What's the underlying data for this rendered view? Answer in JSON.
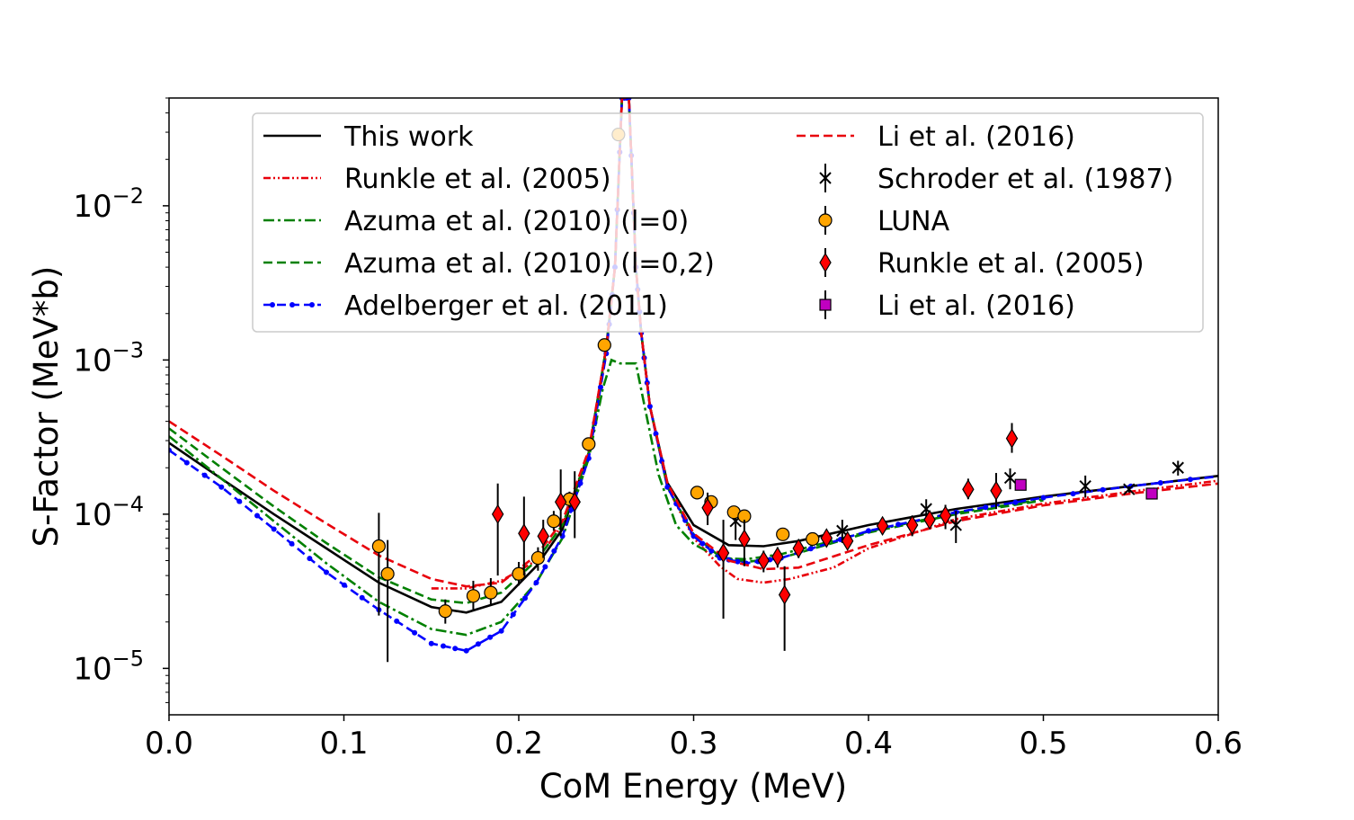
{
  "chart_data": {
    "type": "line",
    "xlabel": "CoM Energy (MeV)",
    "ylabel": "S-Factor (MeV*b)",
    "xlim": [
      0.0,
      0.6
    ],
    "ylim": [
      5e-06,
      0.05
    ],
    "yscale": "log",
    "grid": false,
    "legend_position": "top",
    "x_ticks": [
      {
        "value": 0.0,
        "label": "0.0"
      },
      {
        "value": 0.1,
        "label": "0.1"
      },
      {
        "value": 0.2,
        "label": "0.2"
      },
      {
        "value": 0.3,
        "label": "0.3"
      },
      {
        "value": 0.4,
        "label": "0.4"
      },
      {
        "value": 0.5,
        "label": "0.5"
      },
      {
        "value": 0.6,
        "label": "0.6"
      }
    ],
    "y_ticks": [
      {
        "value": 1e-05,
        "base": "10",
        "exp": "−5"
      },
      {
        "value": 0.0001,
        "base": "10",
        "exp": "−4"
      },
      {
        "value": 0.001,
        "base": "10",
        "exp": "−3"
      },
      {
        "value": 0.01,
        "base": "10",
        "exp": "−2"
      }
    ],
    "curves": [
      {
        "name": "This work",
        "color": "#000000",
        "style": "solid",
        "marker": "none",
        "x": [
          0.0,
          0.03,
          0.06,
          0.09,
          0.12,
          0.15,
          0.17,
          0.19,
          0.21,
          0.225,
          0.24,
          0.25,
          0.255,
          0.259,
          0.263,
          0.267,
          0.27,
          0.275,
          0.285,
          0.3,
          0.32,
          0.34,
          0.36,
          0.4,
          0.45,
          0.5,
          0.55,
          0.6
        ],
        "y": [
          0.00029,
          0.00017,
          0.0001,
          6e-05,
          3.6e-05,
          2.5e-05,
          2.3e-05,
          2.7e-05,
          4.6e-05,
          8e-05,
          0.00025,
          0.0012,
          0.004,
          0.05,
          0.05,
          0.004,
          0.0015,
          0.0005,
          0.00016,
          8.5e-05,
          6.3e-05,
          6.2e-05,
          6.7e-05,
          8.5e-05,
          0.000108,
          0.00013,
          0.000152,
          0.000177
        ]
      },
      {
        "name": "Runkle et al. (2005)",
        "color": "#e8000b",
        "style": "dashdotdot",
        "marker": "none",
        "x": [
          0.15,
          0.17,
          0.19,
          0.21,
          0.225,
          0.24,
          0.25,
          0.255,
          0.259,
          0.263,
          0.267,
          0.27,
          0.275,
          0.285,
          0.3,
          0.315,
          0.325,
          0.34,
          0.355,
          0.38,
          0.4,
          0.45,
          0.5,
          0.55,
          0.6
        ],
        "y": [
          3.3e-05,
          3.3e-05,
          3.7e-05,
          5e-05,
          8.5e-05,
          0.00025,
          0.0011,
          0.004,
          0.05,
          0.05,
          0.004,
          0.0015,
          0.0005,
          0.00015,
          7e-05,
          4.6e-05,
          3.8e-05,
          3.6e-05,
          3.8e-05,
          4.5e-05,
          6e-05,
          9.3e-05,
          0.000117,
          0.00014,
          0.000165
        ]
      },
      {
        "name": "Azuma et al. (2010) (l=0)",
        "color": "#008000",
        "style": "dashdot",
        "marker": "none",
        "x": [
          0.0,
          0.03,
          0.06,
          0.09,
          0.12,
          0.15,
          0.17,
          0.19,
          0.21,
          0.225,
          0.24,
          0.248,
          0.253,
          0.258,
          0.262,
          0.267,
          0.272,
          0.28,
          0.29,
          0.3,
          0.315,
          0.33,
          0.35,
          0.4,
          0.45,
          0.5
        ],
        "y": [
          0.00032,
          0.00017,
          9e-05,
          4.8e-05,
          2.7e-05,
          1.8e-05,
          1.65e-05,
          2e-05,
          3.6e-05,
          7e-05,
          0.00023,
          0.00065,
          0.001,
          0.00095,
          0.00095,
          0.00095,
          0.0005,
          0.00018,
          8.5e-05,
          6.4e-05,
          5.2e-05,
          5.1e-05,
          5.5e-05,
          7.7e-05,
          0.000102,
          0.000125
        ]
      },
      {
        "name": "Azuma et al. (2010) (l=0,2)",
        "color": "#008000",
        "style": "dashed",
        "marker": "none",
        "x": [
          0.0,
          0.03,
          0.06,
          0.09,
          0.12,
          0.15,
          0.17,
          0.19,
          0.21,
          0.225,
          0.24,
          0.25,
          0.255,
          0.259,
          0.263,
          0.267,
          0.27,
          0.275,
          0.285,
          0.3,
          0.315,
          0.33,
          0.35,
          0.4,
          0.45,
          0.5
        ],
        "y": [
          0.00036,
          0.0002,
          0.000112,
          6.5e-05,
          3.9e-05,
          2.8e-05,
          2.65e-05,
          3.1e-05,
          5e-05,
          8.5e-05,
          0.00025,
          0.0012,
          0.004,
          0.05,
          0.05,
          0.004,
          0.0015,
          0.0005,
          0.00015,
          7.4e-05,
          5.3e-05,
          4.9e-05,
          5.2e-05,
          7.6e-05,
          0.0001,
          0.000123
        ]
      },
      {
        "name": "Adelberger et al. (2011)",
        "color": "#0000ff",
        "style": "dashed",
        "marker": "dot",
        "x": [
          0.0,
          0.03,
          0.06,
          0.09,
          0.12,
          0.15,
          0.17,
          0.19,
          0.21,
          0.225,
          0.24,
          0.25,
          0.255,
          0.259,
          0.263,
          0.267,
          0.27,
          0.275,
          0.285,
          0.3,
          0.315,
          0.33,
          0.35,
          0.4,
          0.45,
          0.5,
          0.55,
          0.6
        ],
        "y": [
          0.00026,
          0.00015,
          8e-05,
          4.2e-05,
          2.4e-05,
          1.45e-05,
          1.3e-05,
          1.75e-05,
          3.6e-05,
          7.2e-05,
          0.00023,
          0.0011,
          0.004,
          0.05,
          0.05,
          0.004,
          0.0015,
          0.0005,
          0.00015,
          7.2e-05,
          5.2e-05,
          4.8e-05,
          5.2e-05,
          7.8e-05,
          0.000103,
          0.000128,
          0.000152,
          0.000176
        ]
      },
      {
        "name": "Li et al. (2016)",
        "color": "#e8000b",
        "style": "dashed",
        "marker": "none",
        "x": [
          0.0,
          0.03,
          0.06,
          0.09,
          0.12,
          0.15,
          0.17,
          0.19,
          0.21,
          0.225,
          0.24,
          0.25,
          0.255,
          0.259,
          0.263,
          0.267,
          0.27,
          0.275,
          0.285,
          0.3,
          0.32,
          0.34,
          0.36,
          0.4,
          0.45,
          0.5,
          0.55,
          0.6
        ],
        "y": [
          0.0004,
          0.00024,
          0.000142,
          8.7e-05,
          5.4e-05,
          3.8e-05,
          3.4e-05,
          3.6e-05,
          5.4e-05,
          9e-05,
          0.00026,
          0.0012,
          0.004,
          0.05,
          0.05,
          0.004,
          0.0015,
          0.0005,
          0.00016,
          7.5e-05,
          5e-05,
          4.4e-05,
          4.5e-05,
          6.3e-05,
          9e-05,
          0.000114,
          0.000136,
          0.000158
        ]
      }
    ],
    "points": [
      {
        "name": "Schroder et al. (1987)",
        "color": "#000000",
        "marker": "x",
        "x": [
          0.324,
          0.385,
          0.433,
          0.45,
          0.481,
          0.524,
          0.549,
          0.577
        ],
        "y": [
          9e-05,
          7.8e-05,
          0.000108,
          8.5e-05,
          0.000172,
          0.000152,
          0.000145,
          0.0002
        ],
        "err_lo": [
          6.8e-05,
          6.5e-05,
          9.3e-05,
          6.5e-05,
          0.000145,
          0.000128,
          0.000138,
          0.000178
        ],
        "err_hi": [
          0.000112,
          9.2e-05,
          0.000125,
          0.000105,
          0.000198,
          0.000178,
          0.000152,
          0.000222
        ]
      },
      {
        "name": "LUNA",
        "color": "#ffa500",
        "marker": "circle",
        "x": [
          0.12,
          0.125,
          0.158,
          0.174,
          0.184,
          0.2,
          0.211,
          0.22,
          0.229,
          0.24,
          0.249,
          0.257,
          0.302,
          0.31,
          0.323,
          0.329,
          0.351,
          0.368
        ],
        "y": [
          6.2e-05,
          4.1e-05,
          2.35e-05,
          2.95e-05,
          3.1e-05,
          4.1e-05,
          5.2e-05,
          9e-05,
          0.000125,
          0.000285,
          0.00125,
          0.029,
          0.000138,
          0.00012,
          0.000103,
          9.7e-05,
          7.4e-05,
          6.9e-05
        ],
        "err_lo": [
          2.2e-05,
          1.1e-05,
          1.95e-05,
          2.35e-05,
          2.55e-05,
          3.45e-05,
          4.3e-05,
          7.8e-05,
          0.00011,
          0.000265,
          0.00118,
          0.027,
          0.000128,
          0.000112,
          9.6e-05,
          9e-05,
          6.9e-05,
          6.4e-05
        ],
        "err_hi": [
          0.000102,
          6.8e-05,
          2.8e-05,
          3.7e-05,
          3.85e-05,
          4.9e-05,
          6.1e-05,
          0.000105,
          0.00014,
          0.000305,
          0.00132,
          0.031,
          0.000148,
          0.000128,
          0.00011,
          0.000104,
          7.9e-05,
          7.4e-05
        ]
      },
      {
        "name": "Runkle et al. (2005)",
        "color": "#ff0000",
        "marker": "diamond",
        "x": [
          0.188,
          0.203,
          0.214,
          0.224,
          0.232,
          0.308,
          0.317,
          0.329,
          0.34,
          0.348,
          0.352,
          0.36,
          0.376,
          0.388,
          0.408,
          0.425,
          0.435,
          0.444,
          0.457,
          0.473,
          0.482
        ],
        "y": [
          0.0001,
          7.5e-05,
          7.2e-05,
          0.00012,
          0.00012,
          0.00011,
          5.6e-05,
          6.9e-05,
          5e-05,
          5.3e-05,
          3e-05,
          6e-05,
          7e-05,
          6.7e-05,
          8.4e-05,
          8.5e-05,
          9.2e-05,
          9.8e-05,
          0.000145,
          0.000142,
          0.00031
        ],
        "err_lo": [
          4e-05,
          4e-05,
          5.2e-05,
          7.2e-05,
          7e-05,
          8.5e-05,
          2.1e-05,
          4.6e-05,
          4.2e-05,
          4.5e-05,
          1.3e-05,
          5.2e-05,
          6.2e-05,
          5.9e-05,
          7.4e-05,
          7.2e-05,
          8.2e-05,
          8e-05,
          0.000125,
          0.000108,
          0.00025
        ],
        "err_hi": [
          0.000158,
          0.00013,
          9.2e-05,
          0.000195,
          0.00019,
          0.000138,
          9.2e-05,
          9.2e-05,
          5.8e-05,
          6.1e-05,
          4.6e-05,
          6.8e-05,
          7.8e-05,
          7.6e-05,
          9.5e-05,
          9.8e-05,
          0.000103,
          0.000115,
          0.00017,
          0.000185,
          0.00039
        ]
      },
      {
        "name": "Li et al. (2016)",
        "color": "#c000c0",
        "marker": "square",
        "x": [
          0.487,
          0.562
        ],
        "y": [
          0.000155,
          0.000136
        ],
        "err_lo": [
          0.000148,
          0.00013
        ],
        "err_hi": [
          0.000162,
          0.000142
        ]
      }
    ]
  }
}
